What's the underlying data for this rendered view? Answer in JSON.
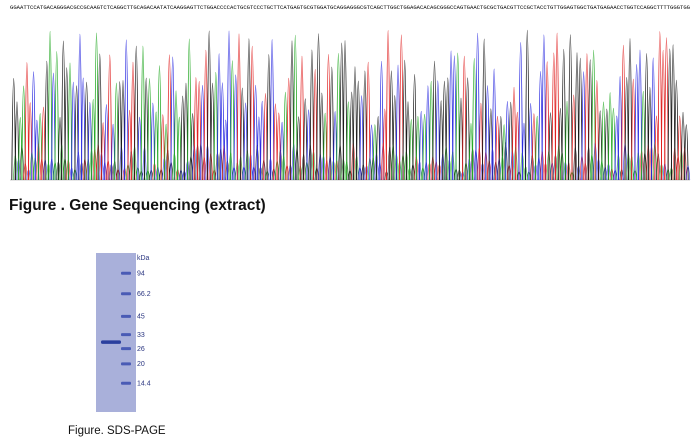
{
  "sequencing": {
    "caption": "Figure . Gene Sequencing (extract)",
    "base_calls": "GGAATTCCATGACAGGGACGCCGCAAGTCTCAGGCTTGCAGACAATATCAAGGAGTTCTGGACCCCACTGCGTCCCTGCTTCATGAGTGCGTGGATGCAGGAGGGCGTCAGCTTGGCTGGAGACACAGCGGGCCAGTGAACTGCGCTGACGTTCCGCTACCTGTTGGAGTGGCTGATGAGAACCTGGTCCAGGCTTTTGGGTGG",
    "trace_colors": {
      "A": "#22a822",
      "C": "#2a2ae0",
      "G": "#1a1a1a",
      "T": "#e02020"
    }
  },
  "sds_page": {
    "caption": "Figure. SDS-PAGE",
    "unit_label": "kDa",
    "markers": [
      {
        "label": "94",
        "kda": 94
      },
      {
        "label": "66.2",
        "kda": 66.2
      },
      {
        "label": "45",
        "kda": 45
      },
      {
        "label": "33",
        "kda": 33
      },
      {
        "label": "26",
        "kda": 26
      },
      {
        "label": "20",
        "kda": 20
      },
      {
        "label": "14.4",
        "kda": 14.4
      }
    ],
    "sample_band_kda": 29,
    "gel_color": "#a9b0da",
    "band_color": "#2b3f9e"
  }
}
